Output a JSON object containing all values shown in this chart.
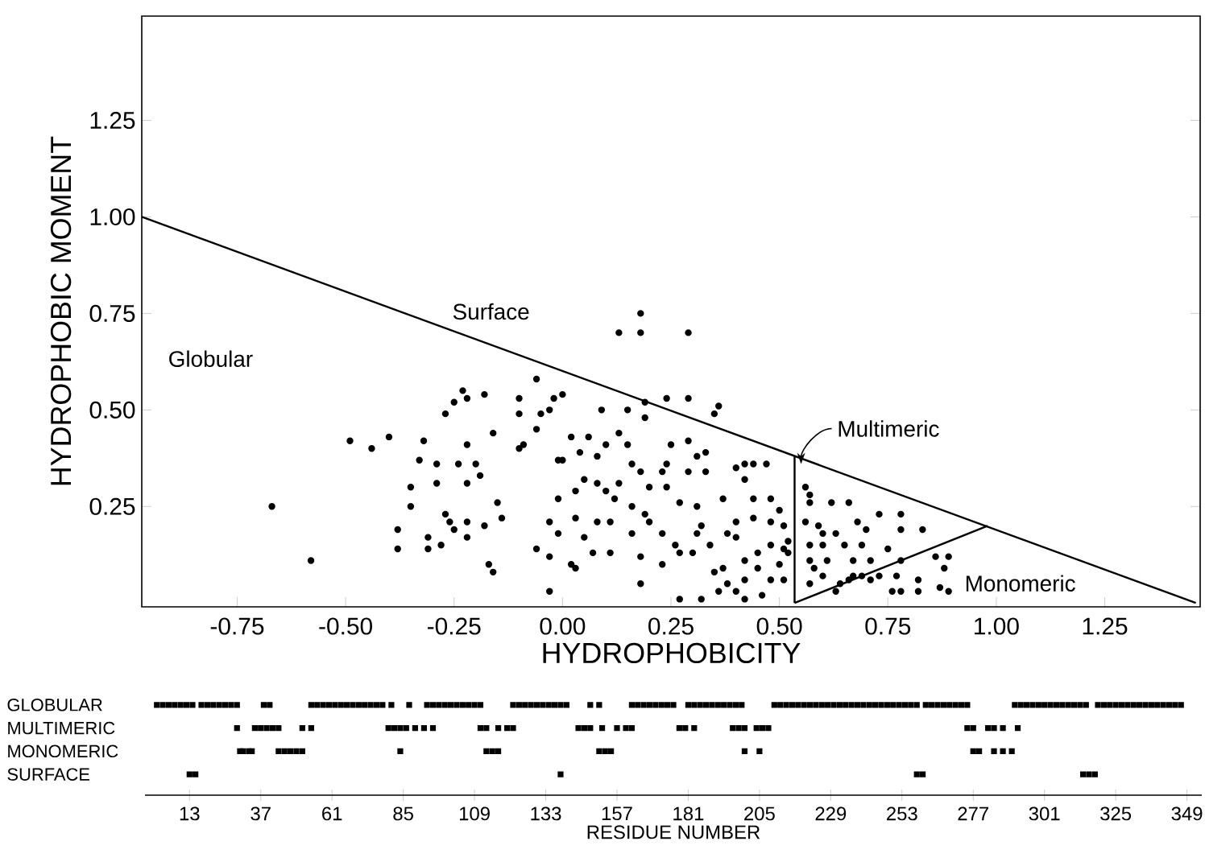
{
  "chart_data": [
    {
      "type": "scatter",
      "xlabel": "HYDROPHOBICITY",
      "ylabel": "HYDROPHOBIC MOMENT",
      "xlim": [
        -0.97,
        1.47
      ],
      "ylim": [
        -0.01,
        1.52
      ],
      "xticks": [
        {
          "value": -0.75,
          "label": "-0.75"
        },
        {
          "value": -0.5,
          "label": "-0.50"
        },
        {
          "value": -0.25,
          "label": "-0.25"
        },
        {
          "value": 0,
          "label": "0.00"
        },
        {
          "value": 0.25,
          "label": "0.25"
        },
        {
          "value": 0.5,
          "label": "0.50"
        },
        {
          "value": 0.75,
          "label": "0.75"
        },
        {
          "value": 1,
          "label": "1.00"
        },
        {
          "value": 1.25,
          "label": "1.25"
        }
      ],
      "yticks": [
        {
          "value": 0.25,
          "label": "0.25"
        },
        {
          "value": 0.5,
          "label": "0.50"
        },
        {
          "value": 0.75,
          "label": "0.75"
        },
        {
          "value": 1,
          "label": "1.00"
        },
        {
          "value": 1.25,
          "label": "1.25"
        }
      ],
      "annotations": [
        "Globular",
        "Surface",
        {
          "text": "Multimeric",
          "x": 0.55,
          "y": 0.36
        },
        "Monomeric"
      ],
      "series": [
        {
          "type": "scatter",
          "marker": "circle",
          "color": "#000000",
          "x": [
            -0.67,
            -0.58,
            -0.49,
            -0.44,
            -0.4,
            -0.38,
            -0.38,
            -0.35,
            -0.35,
            -0.33,
            -0.32,
            -0.31,
            -0.31,
            -0.29,
            -0.29,
            -0.28,
            -0.27,
            -0.27,
            -0.26,
            -0.25,
            -0.25,
            -0.24,
            -0.23,
            -0.22,
            -0.22,
            -0.22,
            -0.22,
            -0.22,
            -0.2,
            -0.19,
            -0.18,
            -0.18,
            -0.17,
            -0.16,
            -0.16,
            -0.15,
            -0.14,
            -0.1,
            -0.1,
            -0.1,
            -0.09,
            -0.06,
            -0.06,
            -0.05,
            -0.03,
            -0.06,
            -0.03,
            -0.03,
            -0.03,
            -0.01,
            -0.01,
            0.18,
            0.13,
            0.18,
            0.29,
            -0.02,
            0.0,
            0.09,
            0.15,
            0.19,
            0.19,
            0.24,
            0.29,
            0.35,
            0.36,
            0.02,
            0.06,
            0.13,
            0.0,
            0.04,
            0.08,
            0.1,
            0.15,
            0.16,
            0.18,
            0.23,
            0.24,
            0.25,
            0.29,
            0.31,
            0.33,
            0.29,
            0.33,
            0.03,
            0.05,
            0.08,
            0.1,
            0.12,
            0.13,
            0.16,
            0.19,
            0.2,
            0.24,
            0.27,
            -0.01,
            0.03,
            0.05,
            0.08,
            0.11,
            0.11,
            0.07,
            0.02,
            0.03,
            0.16,
            0.18,
            0.18,
            0.2,
            0.23,
            0.23,
            0.26,
            0.27,
            0.3,
            0.31,
            0.32,
            0.31,
            0.27,
            0.32,
            0.34,
            0.35,
            0.37,
            0.38,
            0.37,
            0.4,
            0.42,
            0.44,
            0.47,
            0.42,
            0.44,
            0.44,
            0.4,
            0.38,
            0.4,
            0.48,
            0.5,
            0.51,
            0.52,
            0.51,
            0.48,
            0.45,
            0.45,
            0.42,
            0.42,
            0.48,
            0.5,
            0.51,
            0.52,
            0.42,
            0.46,
            0.4,
            0.36,
            0.48,
            0.56,
            0.57,
            0.57,
            0.62,
            0.66,
            0.56,
            0.59,
            0.6,
            0.57,
            0.6,
            0.63,
            0.65,
            0.68,
            0.7,
            0.69,
            0.73,
            0.75,
            0.78,
            0.78,
            0.83,
            0.57,
            0.58,
            0.57,
            0.6,
            0.61,
            0.63,
            0.64,
            0.66,
            0.67,
            0.69,
            0.71,
            0.67,
            0.71,
            0.73,
            0.77,
            0.78,
            0.76,
            0.78,
            0.82,
            0.82,
            0.86,
            0.89,
            0.88,
            0.87,
            0.89
          ],
          "values": [
            0.25,
            0.11,
            0.42,
            0.4,
            0.43,
            0.19,
            0.14,
            0.25,
            0.3,
            0.37,
            0.42,
            0.17,
            0.14,
            0.36,
            0.31,
            0.15,
            0.23,
            0.49,
            0.21,
            0.19,
            0.52,
            0.36,
            0.55,
            0.41,
            0.21,
            0.53,
            0.31,
            0.17,
            0.36,
            0.33,
            0.2,
            0.54,
            0.1,
            0.08,
            0.44,
            0.26,
            0.22,
            0.53,
            0.49,
            0.4,
            0.41,
            0.45,
            0.58,
            0.49,
            0.5,
            0.14,
            0.21,
            0.12,
            0.03,
            0.27,
            0.37,
            0.75,
            0.7,
            0.7,
            0.7,
            0.53,
            0.54,
            0.5,
            0.5,
            0.48,
            0.52,
            0.53,
            0.53,
            0.49,
            0.51,
            0.43,
            0.43,
            0.44,
            0.37,
            0.39,
            0.38,
            0.41,
            0.41,
            0.36,
            0.34,
            0.34,
            0.36,
            0.41,
            0.42,
            0.38,
            0.39,
            0.34,
            0.34,
            0.29,
            0.32,
            0.31,
            0.29,
            0.27,
            0.31,
            0.25,
            0.23,
            0.3,
            0.3,
            0.26,
            0.18,
            0.22,
            0.17,
            0.21,
            0.21,
            0.13,
            0.13,
            0.1,
            0.09,
            0.18,
            0.12,
            0.05,
            0.21,
            0.18,
            0.1,
            0.15,
            0.13,
            0.13,
            0.18,
            0.2,
            0.25,
            0.01,
            0.01,
            0.15,
            0.08,
            0.09,
            0.05,
            0.27,
            0.35,
            0.36,
            0.36,
            0.36,
            0.32,
            0.27,
            0.22,
            0.21,
            0.18,
            0.17,
            0.27,
            0.24,
            0.2,
            0.16,
            0.14,
            0.15,
            0.13,
            0.09,
            0.11,
            0.06,
            0.06,
            0.1,
            0.06,
            0.13,
            0.01,
            0.02,
            0.03,
            0.03,
            0.21,
            0.3,
            0.28,
            0.26,
            0.26,
            0.26,
            0.21,
            0.2,
            0.18,
            0.15,
            0.15,
            0.18,
            0.15,
            0.21,
            0.19,
            0.15,
            0.23,
            0.14,
            0.23,
            0.19,
            0.19,
            0.11,
            0.09,
            0.05,
            0.07,
            0.11,
            0.03,
            0.05,
            0.06,
            0.07,
            0.07,
            0.06,
            0.11,
            0.11,
            0.07,
            0.07,
            0.11,
            0.03,
            0.03,
            0.06,
            0.03,
            0.12,
            0.12,
            0.09,
            0.04,
            0.03
          ]
        },
        {
          "type": "line",
          "marker": "none",
          "color": "#000000",
          "x": [
            -0.97,
            1.46
          ],
          "values": [
            1.0,
            0.0
          ]
        },
        {
          "type": "line",
          "marker": "none",
          "color": "#000000",
          "x": [
            0.535,
            0.535
          ],
          "values": [
            0.0,
            0.38
          ]
        },
        {
          "type": "line",
          "marker": "none",
          "color": "#000000",
          "x": [
            0.535,
            0.98
          ],
          "values": [
            0.0,
            0.2
          ]
        }
      ]
    },
    {
      "type": "scatter",
      "orientation": "horizontal",
      "marker": "square",
      "categories": [
        "GLOBULAR",
        "MULTIMERIC",
        "MONOMERIC",
        "SURFACE"
      ],
      "xlabel": "RESIDUE NUMBER",
      "xlim": [
        -2,
        354
      ],
      "xticks": [
        {
          "value": 13,
          "label": "13"
        },
        {
          "value": 37,
          "label": "37"
        },
        {
          "value": 61,
          "label": "61"
        },
        {
          "value": 85,
          "label": "85"
        },
        {
          "value": 109,
          "label": "109"
        },
        {
          "value": 133,
          "label": "133"
        },
        {
          "value": 157,
          "label": "157"
        },
        {
          "value": 181,
          "label": "181"
        },
        {
          "value": 205,
          "label": "205"
        },
        {
          "value": 229,
          "label": "229"
        },
        {
          "value": 253,
          "label": "253"
        },
        {
          "value": 277,
          "label": "277"
        },
        {
          "value": 301,
          "label": "301"
        },
        {
          "value": 325,
          "label": "325"
        },
        {
          "value": 349,
          "label": "349"
        }
      ],
      "series": [
        {
          "color": "#000000",
          "x": [
            "GLOBULAR",
            "GLOBULAR",
            "GLOBULAR",
            "GLOBULAR",
            "GLOBULAR",
            "GLOBULAR",
            "GLOBULAR",
            "GLOBULAR",
            "GLOBULAR",
            "GLOBULAR",
            "GLOBULAR",
            "GLOBULAR",
            "GLOBULAR",
            "GLOBULAR",
            "GLOBULAR",
            "GLOBULAR",
            "GLOBULAR",
            "GLOBULAR",
            "GLOBULAR",
            "GLOBULAR",
            "GLOBULAR",
            "GLOBULAR",
            "GLOBULAR",
            "GLOBULAR",
            "GLOBULAR",
            "GLOBULAR",
            "GLOBULAR",
            "GLOBULAR",
            "GLOBULAR",
            "GLOBULAR",
            "GLOBULAR",
            "GLOBULAR",
            "GLOBULAR",
            "GLOBULAR",
            "GLOBULAR",
            "GLOBULAR",
            "GLOBULAR",
            "GLOBULAR",
            "GLOBULAR",
            "GLOBULAR",
            "GLOBULAR",
            "GLOBULAR",
            "GLOBULAR",
            "GLOBULAR",
            "GLOBULAR",
            "GLOBULAR",
            "GLOBULAR",
            "GLOBULAR",
            "GLOBULAR",
            "GLOBULAR",
            "GLOBULAR",
            "GLOBULAR",
            "GLOBULAR",
            "GLOBULAR",
            "GLOBULAR",
            "GLOBULAR",
            "GLOBULAR",
            "GLOBULAR",
            "GLOBULAR",
            "GLOBULAR",
            "GLOBULAR",
            "GLOBULAR",
            "GLOBULAR",
            "GLOBULAR",
            "GLOBULAR",
            "GLOBULAR",
            "GLOBULAR",
            "GLOBULAR",
            "GLOBULAR",
            "GLOBULAR",
            "GLOBULAR",
            "GLOBULAR",
            "GLOBULAR",
            "GLOBULAR",
            "GLOBULAR",
            "GLOBULAR",
            "GLOBULAR",
            "GLOBULAR",
            "GLOBULAR",
            "GLOBULAR",
            "GLOBULAR",
            "GLOBULAR",
            "GLOBULAR",
            "GLOBULAR",
            "GLOBULAR",
            "GLOBULAR",
            "GLOBULAR",
            "GLOBULAR",
            "GLOBULAR",
            "GLOBULAR",
            "GLOBULAR",
            "GLOBULAR",
            "GLOBULAR",
            "GLOBULAR",
            "GLOBULAR",
            "GLOBULAR",
            "GLOBULAR",
            "GLOBULAR",
            "GLOBULAR",
            "GLOBULAR",
            "GLOBULAR",
            "GLOBULAR",
            "GLOBULAR",
            "GLOBULAR",
            "GLOBULAR",
            "GLOBULAR",
            "GLOBULAR",
            "GLOBULAR",
            "GLOBULAR",
            "GLOBULAR",
            "GLOBULAR",
            "GLOBULAR",
            "GLOBULAR",
            "GLOBULAR",
            "GLOBULAR",
            "GLOBULAR",
            "GLOBULAR",
            "GLOBULAR",
            "GLOBULAR",
            "GLOBULAR",
            "GLOBULAR",
            "GLOBULAR",
            "GLOBULAR",
            "GLOBULAR",
            "GLOBULAR",
            "GLOBULAR",
            "GLOBULAR",
            "GLOBULAR",
            "GLOBULAR",
            "GLOBULAR",
            "GLOBULAR",
            "GLOBULAR"
          ],
          "values": [
            2,
            4,
            6,
            8,
            10,
            12,
            14,
            17,
            19,
            21,
            23,
            25,
            27,
            29,
            38,
            40,
            54,
            56,
            58,
            60,
            62,
            64,
            66,
            68,
            70,
            72,
            74,
            76,
            78,
            81,
            87,
            93,
            95,
            97,
            99,
            101,
            103,
            105,
            107,
            109,
            111,
            122,
            124,
            126,
            128,
            130,
            132,
            134,
            136,
            138,
            140,
            148,
            151,
            162,
            164,
            166,
            168,
            170,
            172,
            174,
            176,
            181,
            183,
            185,
            187,
            189,
            191,
            193,
            195,
            197,
            199,
            210,
            212,
            214,
            216,
            218,
            220,
            222,
            224,
            226,
            228,
            230,
            232,
            234,
            236,
            238,
            240,
            242,
            244,
            246,
            248,
            250,
            252,
            254,
            256,
            258,
            261,
            263,
            265,
            267,
            269,
            271,
            273,
            275,
            291,
            293,
            295,
            297,
            299,
            301,
            303,
            305,
            307,
            309,
            311,
            313,
            315,
            319,
            321,
            323,
            325,
            327,
            329,
            331,
            333,
            335,
            337,
            339,
            341,
            343,
            345,
            347
          ]
        },
        {
          "color": "#000000",
          "x": [
            "MULTIMERIC",
            "MULTIMERIC",
            "MULTIMERIC",
            "MULTIMERIC",
            "MULTIMERIC",
            "MULTIMERIC",
            "MULTIMERIC",
            "MULTIMERIC",
            "MULTIMERIC",
            "MULTIMERIC",
            "MULTIMERIC",
            "MULTIMERIC",
            "MULTIMERIC",
            "MULTIMERIC",
            "MULTIMERIC",
            "MULTIMERIC",
            "MULTIMERIC",
            "MULTIMERIC",
            "MULTIMERIC",
            "MULTIMERIC",
            "MULTIMERIC",
            "MULTIMERIC",
            "MULTIMERIC",
            "MULTIMERIC",
            "MULTIMERIC",
            "MULTIMERIC",
            "MULTIMERIC",
            "MULTIMERIC",
            "MULTIMERIC",
            "MULTIMERIC",
            "MULTIMERIC",
            "MULTIMERIC",
            "MULTIMERIC",
            "MULTIMERIC",
            "MULTIMERIC",
            "MULTIMERIC",
            "MULTIMERIC",
            "MULTIMERIC",
            "MULTIMERIC",
            "MULTIMERIC",
            "MULTIMERIC",
            "MULTIMERIC"
          ],
          "values": [
            29,
            35,
            37,
            39,
            41,
            43,
            51,
            54,
            80,
            82,
            84,
            86,
            89,
            92,
            95,
            111,
            113,
            117,
            120,
            122,
            144,
            146,
            148,
            152,
            157,
            160,
            162,
            178,
            180,
            183,
            196,
            198,
            200,
            204,
            206,
            208,
            275,
            277,
            282,
            284,
            287,
            292
          ]
        },
        {
          "color": "#000000",
          "x": [
            "MONOMERIC",
            "MONOMERIC",
            "MONOMERIC",
            "MONOMERIC",
            "MONOMERIC",
            "MONOMERIC",
            "MONOMERIC",
            "MONOMERIC",
            "MONOMERIC",
            "MONOMERIC",
            "MONOMERIC",
            "MONOMERIC",
            "MONOMERIC",
            "MONOMERIC",
            "MONOMERIC",
            "MONOMERIC",
            "MONOMERIC",
            "MONOMERIC",
            "MONOMERIC",
            "MONOMERIC",
            "MONOMERIC",
            "MONOMERIC",
            "MONOMERIC"
          ],
          "values": [
            30,
            31,
            33,
            34,
            43,
            45,
            47,
            49,
            51,
            84,
            113,
            115,
            117,
            151,
            153,
            155,
            200,
            205,
            277,
            279,
            284,
            287,
            290
          ]
        },
        {
          "color": "#000000",
          "x": [
            "SURFACE",
            "SURFACE",
            "SURFACE",
            "SURFACE",
            "SURFACE",
            "SURFACE",
            "SURFACE",
            "SURFACE"
          ],
          "values": [
            13,
            15,
            138,
            258,
            260,
            314,
            316,
            318
          ]
        }
      ]
    }
  ]
}
